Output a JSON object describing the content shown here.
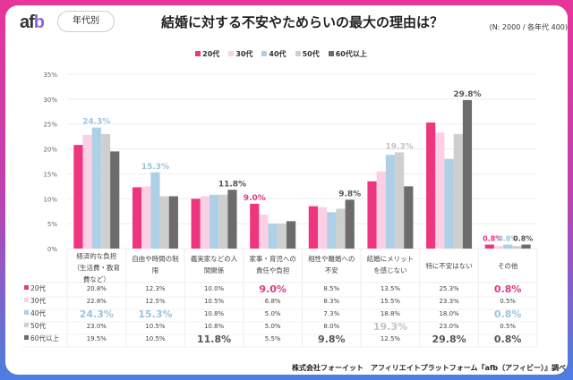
{
  "header": {
    "logo": "afb",
    "tag": "年代別",
    "title": "結婚に対する不安やためらいの最大の理由は？",
    "sample": "(N: 2000 / 各年代 400)"
  },
  "footer": "株式会社フォーイット　アフィリエイトプラットフォーム『afb（アフィビー）』調べ",
  "chart_data": {
    "type": "bar",
    "title": "結婚に対する不安やためらいの最大の理由は？",
    "ylim": [
      0,
      35
    ],
    "yticks": [
      "0%",
      "5%",
      "10%",
      "15%",
      "20%",
      "25%",
      "30%",
      "35%"
    ],
    "grid": true,
    "legend": "top",
    "categories": [
      "経済的な負担（生活費・教育費など）",
      "自由や時間の制限",
      "義実家などの人間関係",
      "家事・育児への責任や負担",
      "相性や離婚への不安",
      "結婚にメリットを感じない",
      "特に不安はない",
      "その他"
    ],
    "categories_wrapped": [
      [
        "経済的な負担",
        "（生活費・教育",
        "費など）"
      ],
      [
        "自由や時間の制",
        "限"
      ],
      [
        "義実家などの人",
        "間関係"
      ],
      [
        "家事・育児への",
        "責任や負担"
      ],
      [
        "相性や離婚への",
        "不安"
      ],
      [
        "結婚にメリット",
        "を感じない"
      ],
      [
        "特に不安はない"
      ],
      [
        "その他"
      ]
    ],
    "series": [
      {
        "name": "20代",
        "color": "#f0357f",
        "labelColor": "#e8357f",
        "values": [
          20.8,
          12.3,
          10.0,
          9.0,
          8.5,
          13.5,
          25.3,
          0.8
        ]
      },
      {
        "name": "30代",
        "color": "#fbd0e4",
        "labelColor": "#f0a8c8",
        "values": [
          22.8,
          12.5,
          10.5,
          6.8,
          8.3,
          15.5,
          23.3,
          0.5
        ]
      },
      {
        "name": "40代",
        "color": "#aed0e6",
        "labelColor": "#9cc4de",
        "values": [
          24.3,
          15.3,
          10.8,
          5.0,
          7.3,
          18.8,
          18.0,
          0.8
        ]
      },
      {
        "name": "50代",
        "color": "#cfcfcf",
        "labelColor": "#c4c4c4",
        "values": [
          23.0,
          10.5,
          10.8,
          5.0,
          8.0,
          19.3,
          23.0,
          0.5
        ]
      },
      {
        "name": "60代以上",
        "color": "#6e6b6c",
        "labelColor": "#555555",
        "values": [
          19.5,
          10.5,
          11.8,
          5.5,
          9.8,
          12.5,
          29.8,
          0.8
        ]
      }
    ],
    "highlights": [
      [
        0,
        2
      ],
      [
        1,
        2
      ],
      [
        2,
        4
      ],
      [
        3,
        0
      ],
      [
        4,
        4
      ],
      [
        5,
        3
      ],
      [
        6,
        4
      ],
      [
        7,
        0
      ],
      [
        7,
        2
      ],
      [
        7,
        4
      ]
    ]
  }
}
